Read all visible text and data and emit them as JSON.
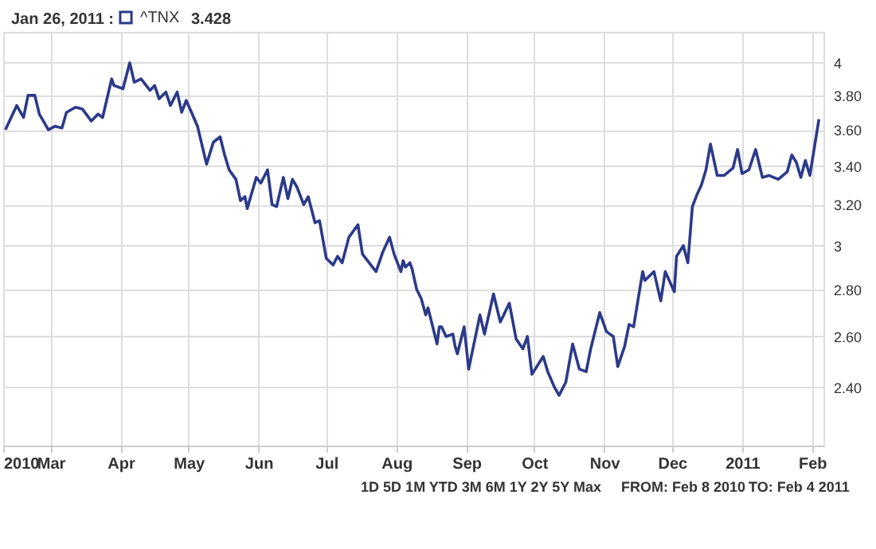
{
  "chart_data": {
    "type": "line",
    "legend": "top left",
    "grid": true,
    "log": "y",
    "line_style": "solid",
    "marker": "none",
    "xlim": [
      "2010-02-08",
      "2011-02-06"
    ],
    "xticks": [
      {
        "value": "2010-02-08",
        "label": "2010"
      },
      {
        "value": "2010-03-01",
        "label": "Mar"
      },
      {
        "value": "2010-04-01",
        "label": "Apr"
      },
      {
        "value": "2010-05-01",
        "label": "May"
      },
      {
        "value": "2010-06-01",
        "label": "Jun"
      },
      {
        "value": "2010-07-01",
        "label": "Jul"
      },
      {
        "value": "2010-08-01",
        "label": "Aug"
      },
      {
        "value": "2010-09-01",
        "label": "Sep"
      },
      {
        "value": "2010-10-01",
        "label": "Oct"
      },
      {
        "value": "2010-11-01",
        "label": "Nov"
      },
      {
        "value": "2010-12-01",
        "label": "Dec"
      },
      {
        "value": "2011-01-01",
        "label": "2011"
      },
      {
        "value": "2011-02-01",
        "label": "Feb"
      }
    ],
    "ylim": [
      2.19,
      4.2
    ],
    "yticks": [
      {
        "value": 2.4,
        "label": "2.40"
      },
      {
        "value": 2.6,
        "label": "2.60"
      },
      {
        "value": 2.8,
        "label": "2.80"
      },
      {
        "value": 3,
        "label": "3"
      },
      {
        "value": 3.2,
        "label": "3.20"
      },
      {
        "value": 3.4,
        "label": "3.40"
      },
      {
        "value": 3.6,
        "label": "3.60"
      },
      {
        "value": 3.8,
        "label": "3.80"
      },
      {
        "value": 4,
        "label": "4"
      }
    ],
    "annotations": [
      "Jan 26, 2011 :",
      "3.428",
      "1D 5D 1M YTD 3M 6M 1Y 2Y 5Y Max",
      "FROM: Feb 8 2010",
      "TO: Feb 4 2011"
    ],
    "x": [
      "2010-02-09",
      "2010-02-14",
      "2010-02-17",
      "2010-02-19",
      "2010-02-22",
      "2010-02-24",
      "2010-02-28",
      "2010-03-03",
      "2010-03-06",
      "2010-03-08",
      "2010-03-12",
      "2010-03-15",
      "2010-03-19",
      "2010-03-22",
      "2010-03-24",
      "2010-03-28",
      "2010-03-29",
      "2010-04-02",
      "2010-04-05",
      "2010-04-07",
      "2010-04-10",
      "2010-04-14",
      "2010-04-16",
      "2010-04-18",
      "2010-04-21",
      "2010-04-23",
      "2010-04-26",
      "2010-04-28",
      "2010-04-30",
      "2010-05-03",
      "2010-05-05",
      "2010-05-09",
      "2010-05-12",
      "2010-05-15",
      "2010-05-17",
      "2010-05-19",
      "2010-05-22",
      "2010-05-24",
      "2010-05-26",
      "2010-05-27",
      "2010-05-31",
      "2010-06-02",
      "2010-06-05",
      "2010-06-07",
      "2010-06-09",
      "2010-06-12",
      "2010-06-14",
      "2010-06-16",
      "2010-06-18",
      "2010-06-21",
      "2010-06-23",
      "2010-06-26",
      "2010-06-28",
      "2010-07-01",
      "2010-07-04",
      "2010-07-06",
      "2010-07-08",
      "2010-07-11",
      "2010-07-15",
      "2010-07-17",
      "2010-07-20",
      "2010-07-23",
      "2010-07-26",
      "2010-07-29",
      "2010-07-31",
      "2010-08-03",
      "2010-08-04",
      "2010-08-05",
      "2010-08-07",
      "2010-08-08",
      "2010-08-10",
      "2010-08-12",
      "2010-08-14",
      "2010-08-15",
      "2010-08-19",
      "2010-08-20",
      "2010-08-21",
      "2010-08-23",
      "2010-08-26",
      "2010-08-27",
      "2010-08-28",
      "2010-08-31",
      "2010-09-02",
      "2010-09-07",
      "2010-09-09",
      "2010-09-13",
      "2010-09-16",
      "2010-09-20",
      "2010-09-23",
      "2010-09-26",
      "2010-09-28",
      "2010-09-30",
      "2010-10-05",
      "2010-10-07",
      "2010-10-10",
      "2010-10-12",
      "2010-10-15",
      "2010-10-18",
      "2010-10-21",
      "2010-10-24",
      "2010-10-26",
      "2010-10-30",
      "2010-11-02",
      "2010-11-05",
      "2010-11-07",
      "2010-11-10",
      "2010-11-12",
      "2010-11-14",
      "2010-11-18",
      "2010-11-19",
      "2010-11-23",
      "2010-11-26",
      "2010-11-28",
      "2010-12-02",
      "2010-12-03",
      "2010-12-06",
      "2010-12-08",
      "2010-12-10",
      "2010-12-12",
      "2010-12-14",
      "2010-12-16",
      "2010-12-18",
      "2010-12-21",
      "2010-12-24",
      "2010-12-28",
      "2010-12-30",
      "2011-01-01",
      "2011-01-04",
      "2011-01-07",
      "2011-01-10",
      "2011-01-13",
      "2011-01-17",
      "2011-01-21",
      "2011-01-23",
      "2011-01-25",
      "2011-01-27",
      "2011-01-29",
      "2011-01-31",
      "2011-02-04"
    ],
    "series": [
      {
        "name": "^TNX",
        "color": "#2b3a8a",
        "values": [
          3.6,
          3.74,
          3.67,
          3.8,
          3.8,
          3.69,
          3.6,
          3.62,
          3.61,
          3.7,
          3.73,
          3.72,
          3.65,
          3.69,
          3.67,
          3.9,
          3.86,
          3.84,
          4.0,
          3.88,
          3.9,
          3.83,
          3.86,
          3.78,
          3.82,
          3.74,
          3.82,
          3.7,
          3.77,
          3.68,
          3.62,
          3.41,
          3.53,
          3.56,
          3.46,
          3.38,
          3.33,
          3.22,
          3.24,
          3.18,
          3.34,
          3.31,
          3.38,
          3.2,
          3.19,
          3.34,
          3.23,
          3.33,
          3.29,
          3.2,
          3.24,
          3.11,
          3.12,
          2.94,
          2.91,
          2.95,
          2.92,
          3.04,
          3.1,
          2.96,
          2.92,
          2.88,
          2.97,
          3.04,
          2.96,
          2.88,
          2.93,
          2.9,
          2.92,
          2.89,
          2.8,
          2.76,
          2.69,
          2.72,
          2.57,
          2.64,
          2.64,
          2.6,
          2.61,
          2.56,
          2.53,
          2.64,
          2.47,
          2.69,
          2.61,
          2.78,
          2.66,
          2.74,
          2.59,
          2.55,
          2.6,
          2.45,
          2.52,
          2.46,
          2.4,
          2.37,
          2.42,
          2.57,
          2.47,
          2.46,
          2.55,
          2.7,
          2.62,
          2.6,
          2.48,
          2.56,
          2.65,
          2.64,
          2.88,
          2.84,
          2.88,
          2.75,
          2.88,
          2.79,
          2.95,
          3.0,
          2.92,
          3.19,
          3.25,
          3.3,
          3.38,
          3.52,
          3.35,
          3.35,
          3.39,
          3.49,
          3.36,
          3.38,
          3.49,
          3.34,
          3.35,
          3.33,
          3.37,
          3.46,
          3.42,
          3.34,
          3.43,
          3.35,
          3.66
        ]
      }
    ]
  }
}
